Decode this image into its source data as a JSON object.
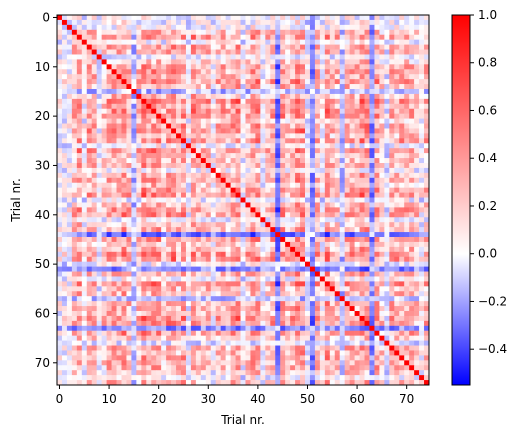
{
  "chart_data": {
    "type": "heatmap",
    "title": "",
    "xlabel": "Trial nr.",
    "ylabel": "Trial nr.",
    "n": 75,
    "x_ticks": [
      0,
      10,
      20,
      30,
      40,
      50,
      60,
      70
    ],
    "y_ticks": [
      0,
      10,
      20,
      30,
      40,
      50,
      60,
      70
    ],
    "colormap": "bwr",
    "vmin": -0.55,
    "vmax": 1.0,
    "colorbar_ticks": [
      1.0,
      0.8,
      0.6,
      0.4,
      0.2,
      0.0,
      -0.2,
      -0.4
    ],
    "colorbar_tick_labels": [
      "1.0",
      "0.8",
      "0.6",
      "0.4",
      "0.2",
      "0.0",
      "−0.2",
      "−0.4"
    ],
    "diagonal_value": 1.0,
    "grid": false,
    "colors": {
      "low": "#0000ff",
      "mid": "#ffffff",
      "high": "#ff0000"
    }
  }
}
